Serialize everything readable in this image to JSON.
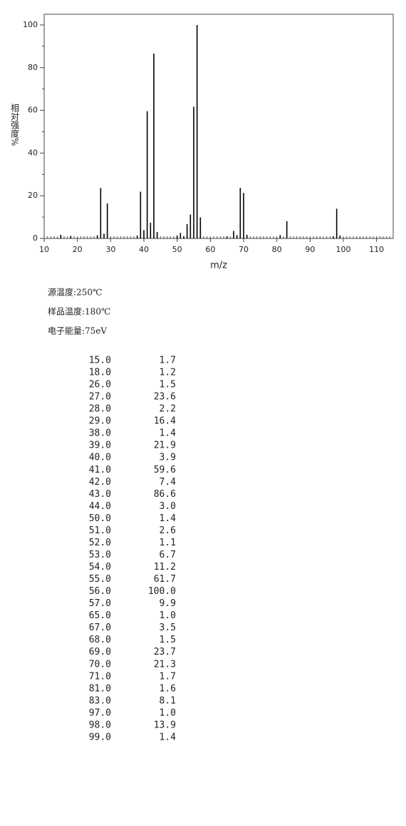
{
  "chart_data": {
    "type": "bar",
    "ylabel": "相对强度%",
    "xlabel": "m/z",
    "x": [
      15,
      18,
      26,
      27,
      28,
      29,
      38,
      39,
      40,
      41,
      42,
      43,
      44,
      50,
      51,
      52,
      53,
      54,
      55,
      56,
      57,
      65,
      67,
      68,
      69,
      70,
      71,
      81,
      83,
      97,
      98,
      99
    ],
    "values": [
      1.7,
      1.2,
      1.5,
      23.6,
      2.2,
      16.4,
      1.4,
      21.9,
      3.9,
      59.6,
      7.4,
      86.6,
      3.0,
      1.4,
      2.6,
      1.1,
      6.7,
      11.2,
      61.7,
      100.0,
      9.9,
      1.0,
      3.5,
      1.5,
      23.7,
      21.3,
      1.7,
      1.6,
      8.1,
      1.0,
      13.9,
      1.4
    ],
    "color": "#000000",
    "xlim": [
      10,
      115
    ],
    "xticks": [
      10,
      20,
      30,
      40,
      50,
      60,
      70,
      80,
      90,
      100,
      110
    ],
    "ylim": [
      0,
      105
    ],
    "yticks": [
      0,
      20,
      40,
      60,
      80,
      100
    ]
  },
  "info": [
    "源温度:250℃",
    "样品温度:180℃",
    "电子能量:75eV"
  ],
  "table": {
    "rows": [
      [
        "15.0",
        "1.7"
      ],
      [
        "18.0",
        "1.2"
      ],
      [
        "26.0",
        "1.5"
      ],
      [
        "27.0",
        "23.6"
      ],
      [
        "28.0",
        "2.2"
      ],
      [
        "29.0",
        "16.4"
      ],
      [
        "38.0",
        "1.4"
      ],
      [
        "39.0",
        "21.9"
      ],
      [
        "40.0",
        "3.9"
      ],
      [
        "41.0",
        "59.6"
      ],
      [
        "42.0",
        "7.4"
      ],
      [
        "43.0",
        "86.6"
      ],
      [
        "44.0",
        "3.0"
      ],
      [
        "50.0",
        "1.4"
      ],
      [
        "51.0",
        "2.6"
      ],
      [
        "52.0",
        "1.1"
      ],
      [
        "53.0",
        "6.7"
      ],
      [
        "54.0",
        "11.2"
      ],
      [
        "55.0",
        "61.7"
      ],
      [
        "56.0",
        "100.0"
      ],
      [
        "57.0",
        "9.9"
      ],
      [
        "65.0",
        "1.0"
      ],
      [
        "67.0",
        "3.5"
      ],
      [
        "68.0",
        "1.5"
      ],
      [
        "69.0",
        "23.7"
      ],
      [
        "70.0",
        "21.3"
      ],
      [
        "71.0",
        "1.7"
      ],
      [
        "81.0",
        "1.6"
      ],
      [
        "83.0",
        "8.1"
      ],
      [
        "97.0",
        "1.0"
      ],
      [
        "98.0",
        "13.9"
      ],
      [
        "99.0",
        "1.4"
      ]
    ]
  }
}
